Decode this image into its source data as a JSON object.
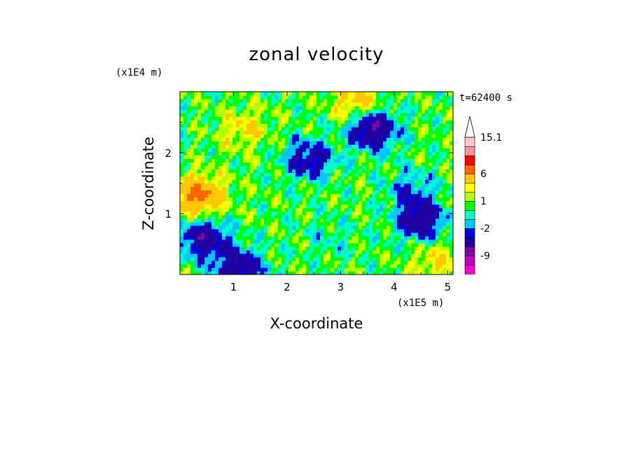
{
  "chart_data": {
    "type": "heatmap",
    "title": "zonal velocity",
    "xlabel": "X-coordinate",
    "ylabel": "Z-coordinate",
    "x_unit": "(x1E5 m)",
    "y_unit": "(x1E4 m)",
    "time_label": "t=62400 s",
    "xlim": [
      0,
      5.1
    ],
    "ylim": [
      0,
      3.0
    ],
    "x_ticks": [
      "1",
      "2",
      "3",
      "4",
      "5"
    ],
    "y_ticks": [
      "1",
      "2"
    ],
    "colorbar": {
      "extend_max": true,
      "levels": [
        -15,
        -12,
        -9,
        -6,
        -3,
        -2,
        -1,
        0,
        1,
        2,
        3,
        6,
        9,
        12,
        15.1
      ],
      "colors": [
        "#ff00cc",
        "#c000c0",
        "#8000a0",
        "#2000a0",
        "#0000e0",
        "#00c8ff",
        "#00ffc8",
        "#00ff00",
        "#b4ff00",
        "#ffff00",
        "#ffc800",
        "#ff6400",
        "#ff0000",
        "#ff9696",
        "#ffc8c8",
        "#ffffff"
      ],
      "tick_labels": [
        "15.1",
        "6",
        "1",
        "-2",
        "-9"
      ]
    },
    "field_features": [
      {
        "desc": "background",
        "x": 2.5,
        "z": 1.2,
        "value": 0.5
      },
      {
        "desc": "orange band upper-left",
        "x": 1.2,
        "z": 2.4,
        "value": 3
      },
      {
        "desc": "red core left",
        "x": 0.35,
        "z": 1.3,
        "value": 7
      },
      {
        "desc": "blue column left",
        "x": 0.45,
        "z": 0.6,
        "value": -5
      },
      {
        "desc": "blue blob top center-right",
        "x": 3.6,
        "z": 2.4,
        "value": -6
      },
      {
        "desc": "blue patch right",
        "x": 4.5,
        "z": 0.9,
        "value": -5
      },
      {
        "desc": "cyan region right",
        "x": 4.3,
        "z": 1.4,
        "value": -2
      },
      {
        "desc": "blue streak upper middle",
        "x": 2.4,
        "z": 1.9,
        "value": -4
      },
      {
        "desc": "green band lower middle",
        "x": 2.8,
        "z": 0.6,
        "value": -0.5
      },
      {
        "desc": "orange patch top center",
        "x": 3.3,
        "z": 2.8,
        "value": 4
      },
      {
        "desc": "blue patch bottom left",
        "x": 1.1,
        "z": 0.1,
        "value": -5
      },
      {
        "desc": "orange region bottom right",
        "x": 4.8,
        "z": 0.2,
        "value": 3
      }
    ]
  }
}
